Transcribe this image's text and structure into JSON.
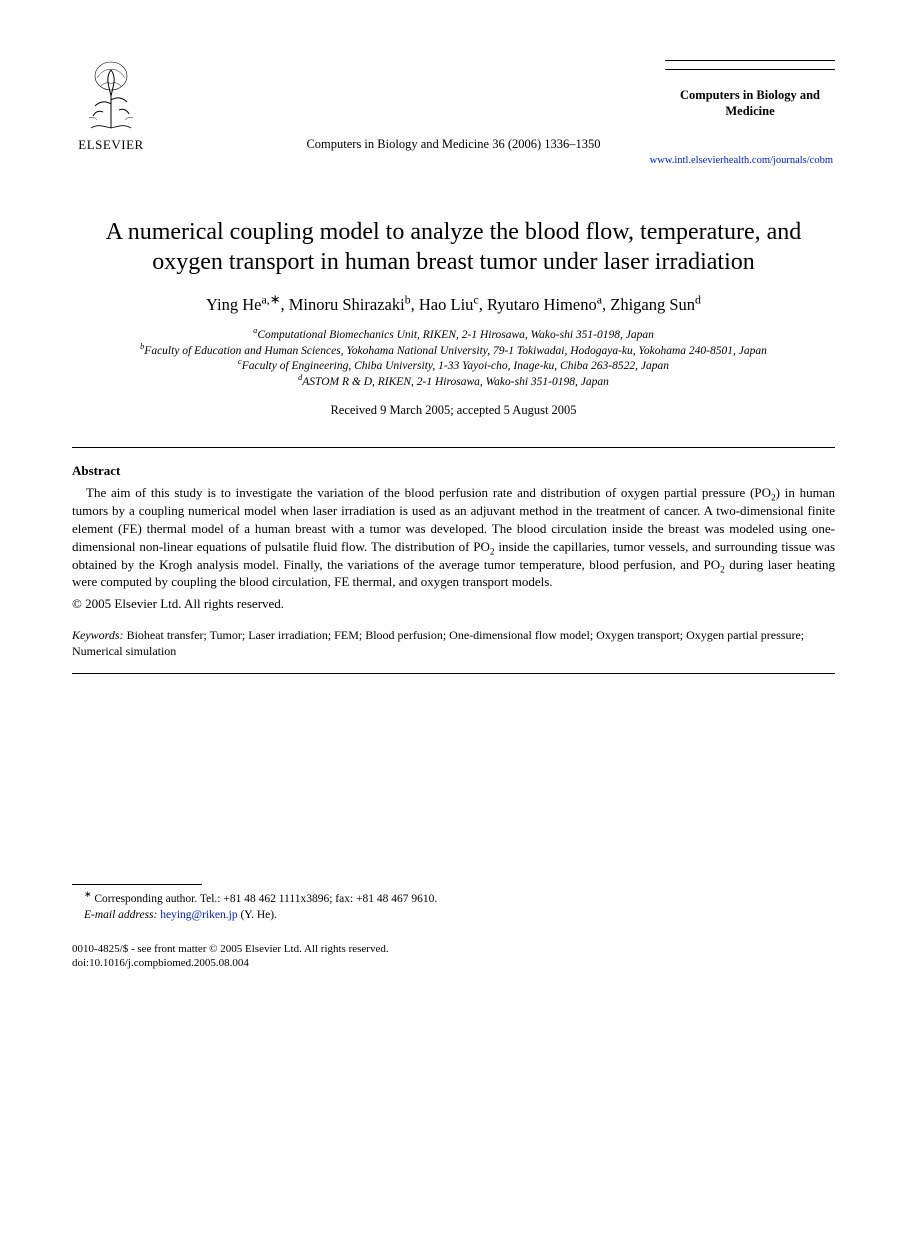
{
  "colors": {
    "text": "#000000",
    "link": "#0020c2",
    "background": "#ffffff",
    "rule": "#000000"
  },
  "typography": {
    "body_font": "Times New Roman",
    "body_size_pt": 10,
    "title_size_pt": 18,
    "authors_size_pt": 12.5,
    "affil_size_pt": 9,
    "footnote_size_pt": 9
  },
  "header": {
    "publisher_logo_text": "ELSEVIER",
    "citation": "Computers in Biology and Medicine 36 (2006) 1336–1350",
    "journal_name": "Computers in Biology and Medicine",
    "journal_url": "www.intl.elsevierhealth.com/journals/cobm"
  },
  "title": "A numerical coupling model to analyze the blood flow, temperature, and oxygen transport in human breast tumor under laser irradiation",
  "authors_html": "Ying He<sup>a,</sup><span class='star'>∗</span>, Minoru Shirazaki<sup>b</sup>, Hao Liu<sup>c</sup>, Ryutaro Himeno<sup>a</sup>, Zhigang Sun<sup>d</sup>",
  "affiliations": [
    {
      "sup": "a",
      "text": "Computational Biomechanics Unit, RIKEN, 2-1 Hirosawa, Wako-shi 351-0198, Japan"
    },
    {
      "sup": "b",
      "text": "Faculty of Education and Human Sciences, Yokohama National University, 79-1 Tokiwadai, Hodogaya-ku, Yokohama 240-8501, Japan"
    },
    {
      "sup": "c",
      "text": "Faculty of Engineering, Chiba University, 1-33 Yayoi-cho, Inage-ku, Chiba 263-8522, Japan"
    },
    {
      "sup": "d",
      "text": "ASTOM R & D, RIKEN, 2-1 Hirosawa, Wako-shi 351-0198, Japan"
    }
  ],
  "received": "Received 9 March 2005; accepted 5 August 2005",
  "abstract": {
    "heading": "Abstract",
    "body_html": "The aim of this study is to investigate the variation of the blood perfusion rate and distribution of oxygen partial pressure (PO<sub>2</sub>) in human tumors by a coupling numerical model when laser irradiation is used as an adjuvant method in the treatment of cancer. A two-dimensional finite element (FE) thermal model of a human breast with a tumor was developed. The blood circulation inside the breast was modeled using one-dimensional non-linear equations of pulsatile fluid flow. The distribution of PO<sub>2</sub> inside the capillaries, tumor vessels, and surrounding tissue was obtained by the Krogh analysis model. Finally, the variations of the average tumor temperature, blood perfusion, and PO<sub>2</sub> during laser heating were computed by coupling the blood circulation, FE thermal, and oxygen transport models.",
    "copyright": "© 2005 Elsevier Ltd. All rights reserved."
  },
  "keywords": {
    "label": "Keywords:",
    "text": "Bioheat transfer; Tumor; Laser irradiation; FEM; Blood perfusion; One-dimensional flow model; Oxygen transport; Oxygen partial pressure; Numerical simulation"
  },
  "footnote": {
    "corr": "Corresponding author. Tel.: +81 48 462 1111x3896; fax: +81 48 467 9610.",
    "email_label": "E-mail address:",
    "email": "heying@riken.jp",
    "email_who": "(Y. He)."
  },
  "front_matter": {
    "line1": "0010-4825/$ - see front matter © 2005 Elsevier Ltd. All rights reserved.",
    "line2": "doi:10.1016/j.compbiomed.2005.08.004"
  }
}
